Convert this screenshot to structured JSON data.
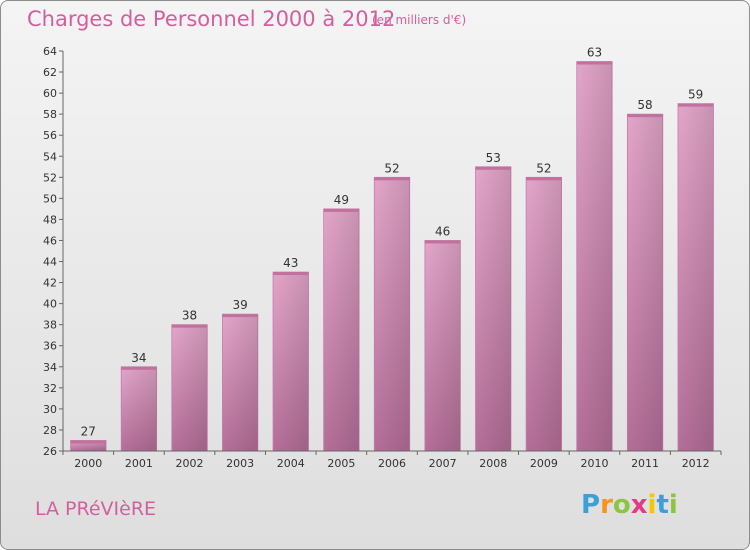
{
  "header": {
    "title": "Charges de Personnel 2000 à 2012",
    "subtitle": "(en milliers d'€)"
  },
  "footer": {
    "city": "LA PRéVIèRE",
    "logo": [
      "P",
      "r",
      "o",
      "x",
      "i",
      "t",
      "i"
    ],
    "logo_colors": [
      "#3ba0d8",
      "#f7941d",
      "#8cc63f",
      "#e63a84",
      "#f7c600",
      "#3ba0d8",
      "#8cc63f"
    ]
  },
  "chart_data": {
    "type": "bar",
    "title": "Charges de Personnel 2000 à 2012",
    "subtitle": "(en milliers d'€)",
    "categories": [
      "2000",
      "2001",
      "2002",
      "2003",
      "2004",
      "2005",
      "2006",
      "2007",
      "2008",
      "2009",
      "2010",
      "2011",
      "2012"
    ],
    "values": [
      27,
      34,
      38,
      39,
      43,
      49,
      52,
      46,
      53,
      52,
      63,
      58,
      59
    ],
    "ylim": [
      26,
      64
    ],
    "yticks": [
      26,
      28,
      30,
      32,
      34,
      36,
      38,
      40,
      42,
      44,
      46,
      48,
      50,
      52,
      54,
      56,
      58,
      60,
      62,
      64
    ],
    "grid": false,
    "bar_color": "#d98fbb"
  }
}
